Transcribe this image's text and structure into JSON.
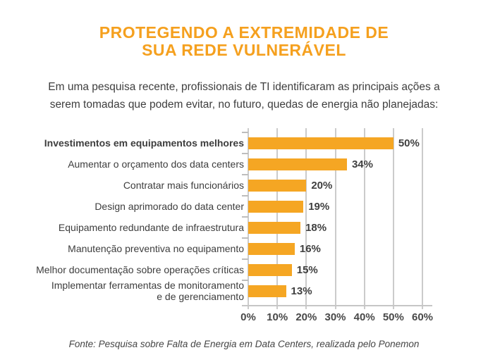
{
  "header": {
    "title_line1": "PROTEGENDO A EXTREMIDADE DE",
    "title_line2": "SUA REDE VULNERÁVEL",
    "title_color": "#F5A01E"
  },
  "intro": {
    "text": "Em uma pesquisa recente, profissionais de TI identificaram as principais ações a serem tomadas que podem evitar, no futuro,  quedas de energia não planejadas:"
  },
  "chart_data": {
    "type": "bar",
    "orientation": "horizontal",
    "title": "",
    "xlabel": "",
    "ylabel": "",
    "xlim": [
      0,
      60
    ],
    "grid": true,
    "bar_color": "#F5A623",
    "gridline_color": "#cbcbcb",
    "value_label_position": "right",
    "categories": [
      "Investimentos em equipamentos melhores",
      "Aumentar o orçamento dos data centers",
      "Contratar mais funcionários",
      "Design aprimorado do data center",
      "Equipamento redundante de infraestrutura",
      "Manutenção preventiva no equipamento",
      "Melhor documentação sobre operações críticas",
      "Implementar ferramentas de monitoramento e de gerenciamento"
    ],
    "values": [
      50,
      34,
      20,
      19,
      18,
      16,
      15,
      13
    ],
    "rows": [
      {
        "label": "Investimentos em equipamentos melhores",
        "value": 50,
        "display": "50%",
        "bold": true
      },
      {
        "label": "Aumentar o orçamento dos data centers",
        "value": 34,
        "display": "34%",
        "bold": false
      },
      {
        "label": "Contratar mais funcionários",
        "value": 20,
        "display": "20%",
        "bold": false
      },
      {
        "label": "Design aprimorado do data center",
        "value": 19,
        "display": "19%",
        "bold": false
      },
      {
        "label": "Equipamento redundante de infraestrutura",
        "value": 18,
        "display": "18%",
        "bold": false
      },
      {
        "label": "Manutenção preventiva no equipamento",
        "value": 16,
        "display": "16%",
        "bold": false
      },
      {
        "label": "Melhor documentação sobre operações críticas",
        "value": 15,
        "display": "15%",
        "bold": false
      },
      {
        "label": "Implementar ferramentas de monitoramento\ne de gerenciamento",
        "value": 13,
        "display": "13%",
        "bold": false
      }
    ],
    "x_ticks": [
      {
        "value": 0,
        "label": "0%"
      },
      {
        "value": 10,
        "label": "10%"
      },
      {
        "value": 20,
        "label": "20%"
      },
      {
        "value": 30,
        "label": "30%"
      },
      {
        "value": 40,
        "label": "40%"
      },
      {
        "value": 50,
        "label": "50%"
      },
      {
        "value": 60,
        "label": "60%"
      }
    ]
  },
  "footer": {
    "source": "Fonte: Pesquisa sobre Falta de Energia em Data Centers, realizada pelo Ponemon"
  }
}
